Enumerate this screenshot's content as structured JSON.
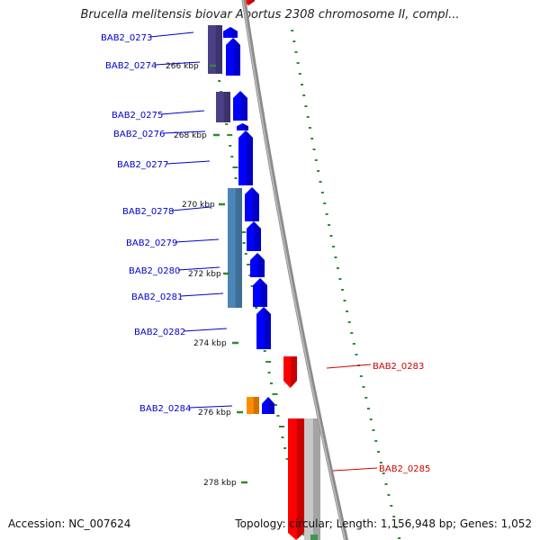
{
  "title": "Brucella melitensis biovar Abortus 2308 chromosome II, compl...",
  "footer": {
    "accession": "Accession: NC_007624",
    "summary": "Topology: circular; Length: 1,156,948 bp; Genes: 1,052"
  },
  "colors": {
    "backbone": "#8c8c8c",
    "forward_gene": "#0000ff",
    "reverse_gene": "#ff0000",
    "cog_purple": "#4b3f86",
    "cog_steelblue": "#4c86b8",
    "cog_orange": "#ff8c00",
    "gc_ticks": "#2e8b2e",
    "label_forward": "#0000cc",
    "label_reverse": "#cc0000"
  },
  "scale_ticks": [
    "266 kbp",
    "268 kbp",
    "270 kbp",
    "272 kbp",
    "274 kbp",
    "276 kbp",
    "278 kbp"
  ],
  "gene_labels_forward": [
    "BAB2_0273",
    "BAB2_0274",
    "BAB2_0275",
    "BAB2_0276",
    "BAB2_0277",
    "BAB2_0278",
    "BAB2_0279",
    "BAB2_0280",
    "BAB2_0281",
    "BAB2_0282",
    "BAB2_0284"
  ],
  "gene_labels_reverse": [
    "BAB2_0283",
    "BAB2_0285"
  ]
}
